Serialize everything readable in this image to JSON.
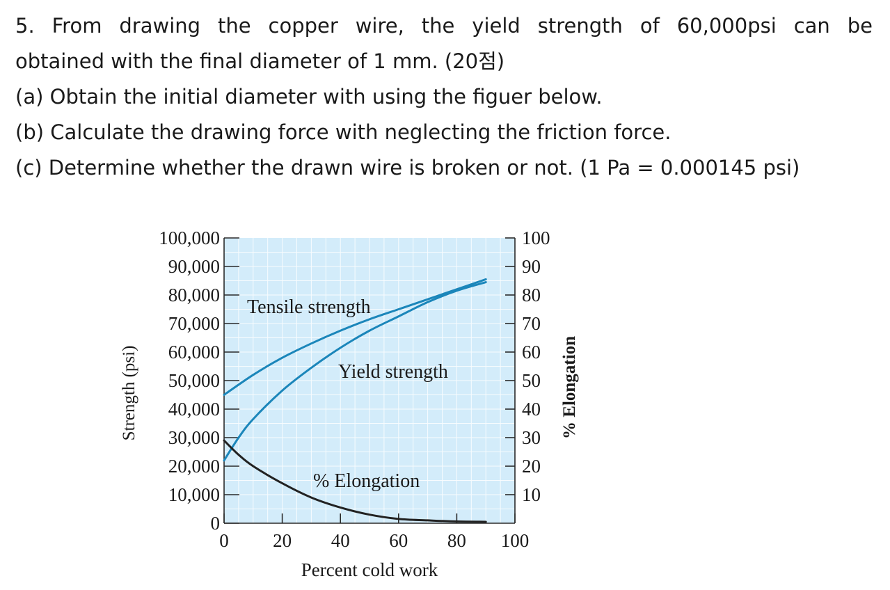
{
  "question": {
    "lines": [
      "5. From drawing the copper wire, the yield strength of 60,000psi can be",
      "obtained with the final diameter of 1 mm. (20점)",
      "(a) Obtain the initial diameter with using the figuer below.",
      "(b) Calculate the drawing force with neglecting the friction force.",
      "(c) Determine whether the drawn wire is broken or not. (1 Pa = 0.000145 psi)"
    ]
  },
  "chart_data": {
    "type": "line",
    "title": "",
    "xlabel": "Percent cold work",
    "ylabel": "Strength (psi)",
    "y2label": "% Elongation",
    "xlim": [
      0,
      100
    ],
    "ylim": [
      0,
      100000
    ],
    "y2lim": [
      0,
      100
    ],
    "grid": true,
    "legend": "none",
    "x_ticks": [
      "0",
      "20",
      "40",
      "60",
      "80",
      "100"
    ],
    "y_ticks": [
      "0",
      "10,000",
      "20,000",
      "30,000",
      "40,000",
      "50,000",
      "60,000",
      "70,000",
      "80,000",
      "90,000",
      "100,000"
    ],
    "y2_ticks": [
      "10",
      "20",
      "30",
      "40",
      "50",
      "60",
      "70",
      "80",
      "90",
      "100"
    ],
    "colors": {
      "strength": "#1b86ba",
      "elongation": "#222222",
      "plot_bg": "#d3ecfa",
      "grid": "#ffffff"
    },
    "series": [
      {
        "name": "Tensile strength",
        "axis": "left",
        "x": [
          0,
          10,
          20,
          30,
          40,
          50,
          60,
          70,
          80,
          90
        ],
        "y": [
          45000,
          52000,
          58000,
          63000,
          67500,
          71500,
          75000,
          78500,
          82000,
          85500
        ]
      },
      {
        "name": "Yield strength",
        "axis": "left",
        "x": [
          0,
          5,
          10,
          20,
          30,
          40,
          50,
          60,
          70,
          80,
          90
        ],
        "y": [
          22000,
          30000,
          36500,
          46500,
          54500,
          61500,
          67500,
          72500,
          77500,
          81500,
          84500
        ]
      },
      {
        "name": "% Elongation",
        "axis": "right",
        "x": [
          0,
          5,
          10,
          20,
          30,
          40,
          50,
          60,
          70,
          80,
          90
        ],
        "y": [
          29,
          24,
          20,
          14,
          9,
          5.5,
          3,
          1.5,
          1,
          0.6,
          0.5
        ]
      }
    ]
  }
}
